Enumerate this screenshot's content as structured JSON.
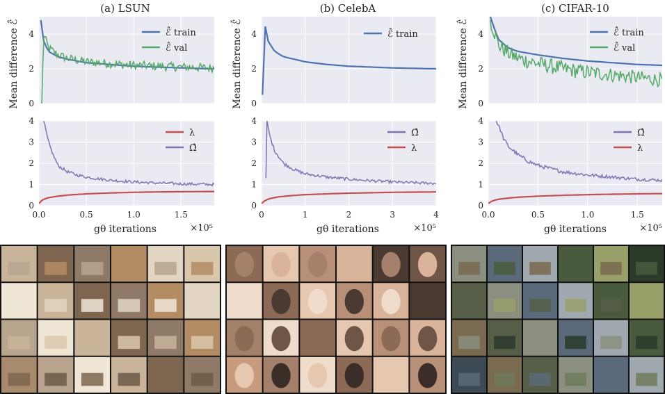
{
  "colors": {
    "plot_bg": "#eaeaf2",
    "grid": "#ffffff",
    "blue": "#4c72b0",
    "green": "#55a868",
    "red": "#c44e52",
    "purple": "#8172b2"
  },
  "labels": {
    "ylabel_top": "Mean difference ℰ̂",
    "xlabel": "gθ iterations",
    "xexp": "×10⁵",
    "legend_train": "ℰ̂ train",
    "legend_val": "ℰ̂ val",
    "legend_lambda": "λ",
    "legend_omega": "Ω̂"
  },
  "chart_data": [
    {
      "panel": "a-top",
      "type": "line",
      "title": "(a) LSUN",
      "ylabel": "Mean difference ℰ̂",
      "xlim": [
        0,
        1.85
      ],
      "ylim": [
        0,
        5
      ],
      "yticks": [
        0,
        2,
        4
      ],
      "xticks": [
        0,
        0.5,
        1.0,
        1.5
      ],
      "grid": true,
      "legend": "top-right",
      "series": [
        {
          "name": "ℰ̂ train",
          "color": "blue",
          "x": [
            0.02,
            0.05,
            0.1,
            0.2,
            0.3,
            0.5,
            0.75,
            1.0,
            1.25,
            1.5,
            1.85
          ],
          "y": [
            4.8,
            3.6,
            3.0,
            2.7,
            2.55,
            2.35,
            2.25,
            2.15,
            2.1,
            2.05,
            2.0
          ]
        },
        {
          "name": "ℰ̂ val",
          "color": "green",
          "x": [
            0.03,
            0.05,
            0.1,
            0.2,
            0.3,
            0.5,
            0.75,
            1.0,
            1.25,
            1.5,
            1.85
          ],
          "y": [
            0.0,
            4.0,
            3.2,
            2.8,
            2.6,
            2.4,
            2.3,
            2.2,
            2.15,
            2.1,
            2.05
          ],
          "noise": 0.25
        }
      ]
    },
    {
      "panel": "b-top",
      "type": "line",
      "title": "(b) CelebA",
      "ylabel": "Mean difference ℰ̂",
      "xlim": [
        0,
        4
      ],
      "ylim": [
        0,
        5
      ],
      "yticks": [
        0,
        2,
        4
      ],
      "xticks": [
        0,
        1,
        2,
        3,
        4
      ],
      "grid": true,
      "legend": "top-right",
      "series": [
        {
          "name": "ℰ̂ train",
          "color": "blue",
          "x": [
            0.02,
            0.05,
            0.1,
            0.15,
            0.3,
            0.5,
            1.0,
            1.5,
            2.0,
            2.5,
            3.0,
            4.0
          ],
          "y": [
            0.5,
            4.8,
            4.3,
            3.6,
            3.0,
            2.7,
            2.4,
            2.25,
            2.15,
            2.1,
            2.05,
            2.0
          ]
        }
      ]
    },
    {
      "panel": "c-top",
      "type": "line",
      "title": "(c) CIFAR-10",
      "ylabel": "Mean difference ℰ̂",
      "xlim": [
        0,
        1.75
      ],
      "ylim": [
        0,
        5
      ],
      "yticks": [
        0,
        2,
        4
      ],
      "xticks": [
        0,
        0.5,
        1.0,
        1.5
      ],
      "grid": true,
      "legend": "top-right",
      "series": [
        {
          "name": "ℰ̂ train",
          "color": "blue",
          "x": [
            0.02,
            0.05,
            0.1,
            0.2,
            0.3,
            0.5,
            0.75,
            1.0,
            1.25,
            1.5,
            1.75
          ],
          "y": [
            5.0,
            4.5,
            3.7,
            3.2,
            3.0,
            2.8,
            2.6,
            2.45,
            2.35,
            2.25,
            2.2
          ]
        },
        {
          "name": "ℰ̂ val",
          "color": "green",
          "x": [
            0.02,
            0.05,
            0.1,
            0.2,
            0.3,
            0.5,
            0.75,
            1.0,
            1.25,
            1.5,
            1.75
          ],
          "y": [
            4.8,
            4.3,
            3.4,
            2.9,
            2.6,
            2.3,
            2.0,
            1.8,
            1.65,
            1.5,
            1.35
          ],
          "noise": 0.45
        }
      ]
    },
    {
      "panel": "a-bottom",
      "type": "line",
      "xlabel": "gθ iterations",
      "xexp": "×10⁵",
      "xlim": [
        0,
        1.85
      ],
      "ylim": [
        0,
        4
      ],
      "yticks": [
        0,
        1,
        2,
        3,
        4
      ],
      "xticks": [
        0.0,
        0.5,
        1.0,
        1.5
      ],
      "grid": true,
      "legend": "top-right",
      "series": [
        {
          "name": "λ",
          "color": "red",
          "x": [
            0,
            0.02,
            0.05,
            0.1,
            0.2,
            0.3,
            0.5,
            0.75,
            1.0,
            1.25,
            1.5,
            1.85
          ],
          "y": [
            0.1,
            0.22,
            0.3,
            0.38,
            0.45,
            0.5,
            0.56,
            0.6,
            0.63,
            0.65,
            0.66,
            0.67
          ]
        },
        {
          "name": "Ω̂",
          "color": "purple",
          "x": [
            0.05,
            0.07,
            0.1,
            0.15,
            0.2,
            0.3,
            0.4,
            0.5,
            0.75,
            1.0,
            1.25,
            1.5,
            1.85
          ],
          "y": [
            4.0,
            3.6,
            3.0,
            2.4,
            1.9,
            1.6,
            1.45,
            1.35,
            1.2,
            1.12,
            1.07,
            1.03,
            1.0
          ],
          "noise": 0.08
        }
      ]
    },
    {
      "panel": "b-bottom",
      "type": "line",
      "xlabel": "gθ iterations",
      "xexp": "×10⁵",
      "xlim": [
        0,
        4
      ],
      "ylim": [
        0,
        4
      ],
      "yticks": [
        0,
        1,
        2,
        3,
        4
      ],
      "xticks": [
        0,
        1,
        2,
        3,
        4
      ],
      "grid": true,
      "legend": "top-right",
      "series": [
        {
          "name": "Ω̂",
          "color": "purple",
          "x": [
            0.1,
            0.12,
            0.2,
            0.3,
            0.5,
            0.75,
            1.0,
            1.5,
            2.0,
            2.5,
            3.0,
            3.5,
            4.0
          ],
          "y": [
            1.3,
            4.0,
            3.2,
            2.6,
            2.0,
            1.7,
            1.5,
            1.35,
            1.25,
            1.18,
            1.12,
            1.08,
            1.05
          ],
          "noise": 0.08
        },
        {
          "name": "λ",
          "color": "red",
          "x": [
            0,
            0.05,
            0.1,
            0.2,
            0.4,
            0.7,
            1.0,
            1.5,
            2.0,
            2.5,
            3.0,
            3.5,
            4.0
          ],
          "y": [
            0.1,
            0.2,
            0.27,
            0.34,
            0.42,
            0.48,
            0.52,
            0.56,
            0.59,
            0.61,
            0.63,
            0.64,
            0.65
          ]
        }
      ]
    },
    {
      "panel": "c-bottom",
      "type": "line",
      "xlabel": "gθ iterations",
      "xexp": "×10⁵",
      "xlim": [
        0,
        1.75
      ],
      "ylim": [
        0,
        4
      ],
      "yticks": [
        0,
        1,
        2,
        3,
        4
      ],
      "xticks": [
        0.0,
        0.5,
        1.0,
        1.5
      ],
      "grid": true,
      "legend": "top-right",
      "series": [
        {
          "name": "Ω̂",
          "color": "purple",
          "x": [
            0.08,
            0.12,
            0.15,
            0.2,
            0.3,
            0.4,
            0.5,
            0.75,
            1.0,
            1.25,
            1.5,
            1.75
          ],
          "y": [
            4.0,
            3.6,
            3.2,
            2.8,
            2.4,
            2.1,
            1.9,
            1.6,
            1.45,
            1.35,
            1.25,
            1.2
          ],
          "noise": 0.09
        },
        {
          "name": "λ",
          "color": "red",
          "x": [
            0,
            0.02,
            0.05,
            0.1,
            0.2,
            0.3,
            0.5,
            0.75,
            1.0,
            1.25,
            1.5,
            1.75
          ],
          "y": [
            0.1,
            0.18,
            0.24,
            0.3,
            0.36,
            0.4,
            0.45,
            0.49,
            0.52,
            0.54,
            0.56,
            0.57
          ]
        }
      ]
    }
  ],
  "sample_grids": [
    {
      "name": "lsun-samples",
      "rows": 4,
      "cols": 6,
      "palette": [
        "#c9b49a",
        "#a88a6c",
        "#e2d6c2",
        "#7e6650",
        "#b9a58e",
        "#d8c7ab",
        "#8f7a68",
        "#efe6d6",
        "#6d5a48",
        "#b48c64"
      ]
    },
    {
      "name": "celeba-samples",
      "rows": 4,
      "cols": 6,
      "palette": [
        "#d9b49a",
        "#8c6a55",
        "#c79b7d",
        "#4a3a32",
        "#e6c8b0",
        "#a5806a",
        "#6e5545",
        "#b89078",
        "#f0dccb",
        "#3b2e28"
      ]
    },
    {
      "name": "cifar-samples",
      "rows": 4,
      "cols": 6,
      "palette": [
        "#6f7a5a",
        "#4a5a3c",
        "#8a8f80",
        "#3c4a55",
        "#9aa06a",
        "#5a6a7a",
        "#7a6a50",
        "#2c3a2a",
        "#a0a8b0",
        "#565e48"
      ]
    }
  ]
}
